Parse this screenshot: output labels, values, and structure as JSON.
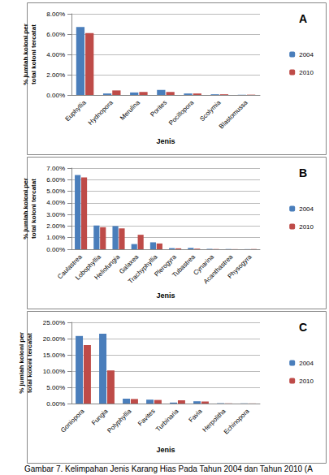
{
  "chart_data": [
    {
      "type": "bar",
      "title": "A",
      "x_label": "Jenis",
      "y_label": "% jumlah koloni per total koloni tercatat",
      "categories": [
        "Euphyllia",
        "Hydnopora",
        "Merulina",
        "Porites",
        "Pocillopora",
        "Scolymia",
        "Blastomussa"
      ],
      "series": [
        {
          "name": "2004",
          "color": "#4a7ebb",
          "values": [
            6.7,
            0.15,
            0.25,
            0.5,
            0.15,
            0.07,
            0.02
          ]
        },
        {
          "name": "2010",
          "color": "#be4b48",
          "values": [
            6.1,
            0.45,
            0.3,
            0.3,
            0.15,
            0.07,
            0.03
          ]
        }
      ],
      "ylim": [
        0,
        8
      ],
      "yticks": [
        {
          "value": 0,
          "label": "0.00%"
        },
        {
          "value": 2,
          "label": "2.00%"
        },
        {
          "value": 4,
          "label": "4.00%"
        },
        {
          "value": 6,
          "label": "6.00%"
        },
        {
          "value": 8,
          "label": "8.00%"
        }
      ],
      "grid": true,
      "legend": "right"
    },
    {
      "type": "bar",
      "title": "B",
      "x_label": "Jenis",
      "y_label": "% jumlah koloni per total koloni tercatat",
      "categories": [
        "Caulastrea",
        "Lobophyllia",
        "Heliofungia",
        "Galaxea",
        "Trachyphyllia",
        "Plerogyra",
        "Tubastrea",
        "Cynarina",
        "Acanthastrea",
        "Physogyra"
      ],
      "series": [
        {
          "name": "2004",
          "color": "#4a7ebb",
          "values": [
            6.4,
            2.05,
            2.0,
            0.45,
            0.6,
            0.1,
            0.12,
            0.03,
            0.02,
            0.01
          ]
        },
        {
          "name": "2010",
          "color": "#be4b48",
          "values": [
            6.2,
            1.9,
            1.8,
            1.25,
            0.5,
            0.08,
            0.05,
            0.02,
            0.01,
            0.02
          ]
        }
      ],
      "ylim": [
        0,
        7
      ],
      "yticks": [
        {
          "value": 0,
          "label": "0.00%"
        },
        {
          "value": 1,
          "label": "1.00%"
        },
        {
          "value": 2,
          "label": "2.00%"
        },
        {
          "value": 3,
          "label": "3.00%"
        },
        {
          "value": 4,
          "label": "4.00%"
        },
        {
          "value": 5,
          "label": "5.00%"
        },
        {
          "value": 6,
          "label": "6.00%"
        },
        {
          "value": 7,
          "label": "7.00%"
        }
      ],
      "grid": true,
      "legend": "right"
    },
    {
      "type": "bar",
      "title": "C",
      "x_label": "Jenis",
      "y_label": "% jumlah koloni per total koloni tercatat",
      "categories": [
        "Goniopora",
        "Fungia",
        "Polyphyllia",
        "Favites",
        "Turbinaria",
        "Favia",
        "Herpolitha",
        "Echinopora"
      ],
      "series": [
        {
          "name": "2004",
          "color": "#4a7ebb",
          "values": [
            20.8,
            21.5,
            1.5,
            1.2,
            0.3,
            0.7,
            0.1,
            0.05
          ]
        },
        {
          "name": "2010",
          "color": "#be4b48",
          "values": [
            18.0,
            10.2,
            1.4,
            1.1,
            1.0,
            0.6,
            0.05,
            0.03
          ]
        }
      ],
      "ylim": [
        0,
        25
      ],
      "yticks": [
        {
          "value": 0,
          "label": "0.00%"
        },
        {
          "value": 5,
          "label": "5.00%"
        },
        {
          "value": 10,
          "label": "10.00%"
        },
        {
          "value": 15,
          "label": "15.00%"
        },
        {
          "value": 20,
          "label": "20.00%"
        },
        {
          "value": 25,
          "label": "25.00%"
        }
      ],
      "grid": true,
      "legend": "right"
    }
  ],
  "caption": "Gambar 7. Kelimpahan Jenis Karang Hias Pada Tahun 2004 dan Tahun 2010 (A"
}
